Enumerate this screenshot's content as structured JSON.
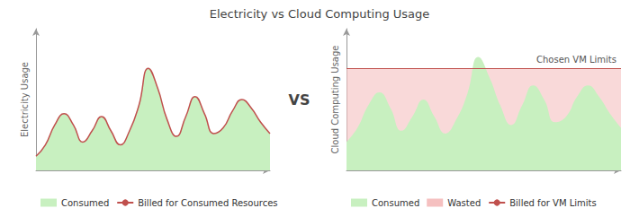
{
  "title": "Electricity vs Cloud Computing Usage",
  "annotation": "VS",
  "chart_data": [
    {
      "type": "area",
      "ylabel": "Electricity Usage",
      "x": [
        0.0,
        0.04,
        0.08,
        0.12,
        0.16,
        0.2,
        0.24,
        0.28,
        0.32,
        0.36,
        0.4,
        0.44,
        0.48,
        0.52,
        0.56,
        0.6,
        0.64,
        0.68,
        0.72,
        0.76,
        0.8,
        0.84,
        0.88,
        0.92,
        0.96,
        1.0
      ],
      "series": [
        {
          "name": "Consumed",
          "type": "area",
          "color": "#c8f0c0",
          "values": [
            0.1,
            0.18,
            0.32,
            0.4,
            0.32,
            0.2,
            0.28,
            0.38,
            0.28,
            0.18,
            0.28,
            0.46,
            0.72,
            0.58,
            0.36,
            0.24,
            0.38,
            0.52,
            0.4,
            0.26,
            0.3,
            0.42,
            0.5,
            0.44,
            0.34,
            0.26
          ]
        },
        {
          "name": "Billed for Consumed Resources",
          "type": "line",
          "color": "#c0504d",
          "values": [
            0.1,
            0.18,
            0.32,
            0.4,
            0.32,
            0.2,
            0.28,
            0.38,
            0.28,
            0.18,
            0.28,
            0.46,
            0.72,
            0.58,
            0.36,
            0.24,
            0.38,
            0.52,
            0.4,
            0.26,
            0.3,
            0.42,
            0.5,
            0.44,
            0.34,
            0.26
          ]
        }
      ],
      "xlim": [
        0,
        1
      ],
      "ylim": [
        0,
        1
      ],
      "xticks": [],
      "yticks": [],
      "tick_labels": false,
      "grid": false,
      "legend": "bottom"
    },
    {
      "type": "area",
      "ylabel": "Cloud Computing Usage",
      "x": [
        0.0,
        0.04,
        0.08,
        0.12,
        0.16,
        0.2,
        0.24,
        0.28,
        0.32,
        0.36,
        0.4,
        0.44,
        0.48,
        0.52,
        0.56,
        0.6,
        0.64,
        0.68,
        0.72,
        0.76,
        0.8,
        0.84,
        0.88,
        0.92,
        0.96,
        1.0
      ],
      "vm_limit": 0.72,
      "vm_limit_label": "Chosen VM Limits",
      "series": [
        {
          "name": "Consumed",
          "type": "area",
          "color": "#c8f0c0",
          "values": [
            0.2,
            0.3,
            0.46,
            0.55,
            0.44,
            0.28,
            0.38,
            0.5,
            0.38,
            0.26,
            0.36,
            0.54,
            0.8,
            0.66,
            0.46,
            0.32,
            0.46,
            0.6,
            0.5,
            0.34,
            0.38,
            0.52,
            0.6,
            0.52,
            0.4,
            0.3
          ]
        },
        {
          "name": "Wasted",
          "type": "area_to_limit",
          "color": "#f5c0c0"
        },
        {
          "name": "Billed for VM Limits",
          "type": "hline",
          "color": "#c0504d"
        }
      ],
      "xlim": [
        0,
        1
      ],
      "ylim": [
        0,
        1
      ],
      "xticks": [],
      "yticks": [],
      "tick_labels": false,
      "grid": false,
      "legend": "bottom"
    }
  ]
}
